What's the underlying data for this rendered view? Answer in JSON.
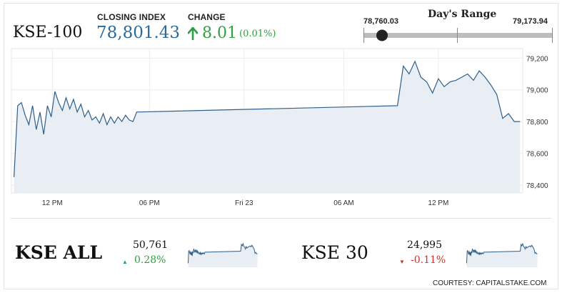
{
  "header": {
    "title": "KSE-100",
    "closing_label": "CLOSING INDEX",
    "closing_value": "78,801.43",
    "change_label": "CHANGE",
    "change_value": "8.01",
    "change_pct": "(0.01%)",
    "range_title": "Day's Range",
    "range_low": "78,760.03",
    "range_high": "79,173.94"
  },
  "chart_data": {
    "type": "area",
    "title": "",
    "xlabel": "",
    "ylabel": "",
    "x_ticks": [
      "12 PM",
      "06 PM",
      "Fri 23",
      "06 AM",
      "12 PM"
    ],
    "y_ticks": [
      "79,200",
      "79,000",
      "78,800",
      "78,600",
      "78,400"
    ],
    "ylim": [
      78350,
      79260
    ],
    "grid": true,
    "series": [
      {
        "values": [
          78450,
          78900,
          78920,
          78840,
          78780,
          78900,
          78750,
          78860,
          78720,
          78900,
          78830,
          78990,
          78920,
          78870,
          78950,
          78880,
          78940,
          78860,
          78910,
          78830,
          78870,
          78810,
          78830,
          78790,
          78850,
          78780,
          78830,
          78790,
          78830,
          78800,
          78840,
          78810,
          78800,
          78860,
          78900,
          79150,
          79100,
          79180,
          79080,
          79050,
          78980,
          79070,
          79020,
          79050,
          79060,
          79080,
          79100,
          79060,
          79120,
          79080,
          79030,
          78970,
          78820,
          78850,
          78800,
          78800
        ]
      }
    ]
  },
  "bottom": {
    "left": {
      "name": "KSE ALL",
      "value": "50,761",
      "change": "0.28%"
    },
    "right": {
      "name": "KSE 30",
      "value": "24,995",
      "change": "-0.11%"
    },
    "courtesy": "COURTESY: CAPITALSTAKE.COM"
  }
}
